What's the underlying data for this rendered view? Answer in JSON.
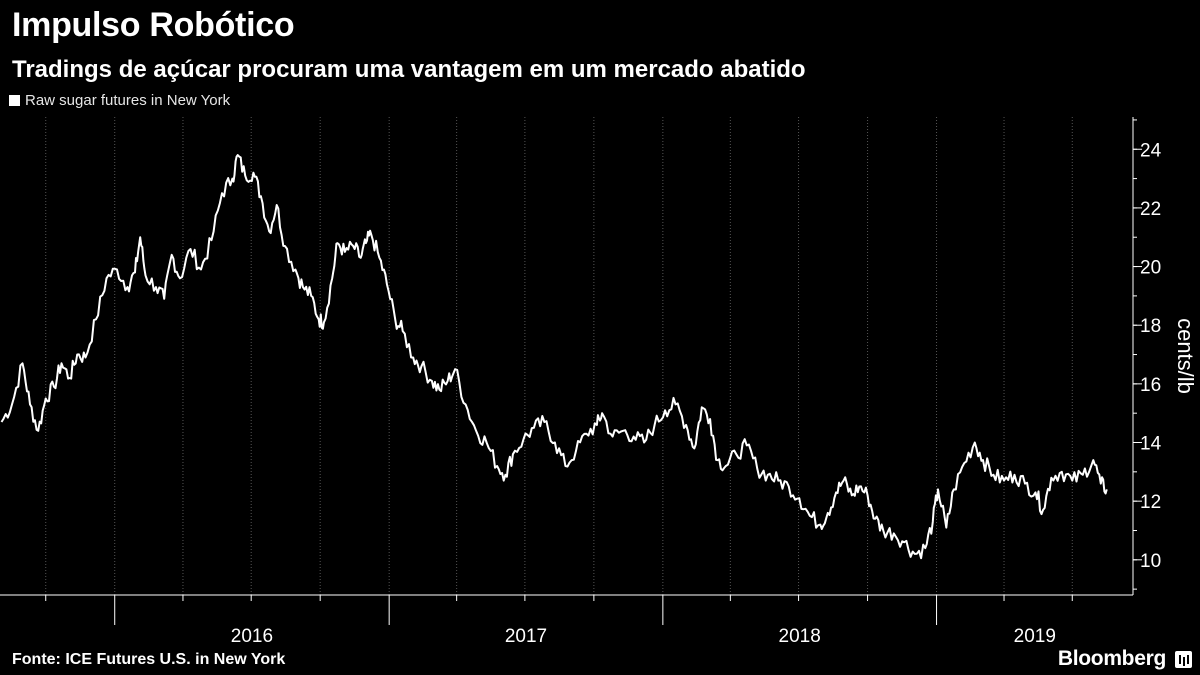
{
  "header": {
    "title": "Impulso Robótico",
    "subtitle": "Tradings de açúcar procuram uma vantagem em um mercado abatido"
  },
  "legend": {
    "label": "Raw sugar futures in New York",
    "color": "#ffffff"
  },
  "footer": {
    "source": "Fonte: ICE Futures U.S. in New York",
    "brand": "Bloomberg"
  },
  "colors": {
    "background": "#000000",
    "line": "#ffffff",
    "grid": "#555555",
    "text": "#ffffff"
  },
  "chart_data": {
    "type": "line",
    "series": [
      {
        "name": "Raw sugar futures in New York",
        "points": [
          [
            "2015-08-03",
            14.7
          ],
          [
            "2015-08-17",
            15.3
          ],
          [
            "2015-08-31",
            16.7
          ],
          [
            "2015-09-10",
            15.3
          ],
          [
            "2015-09-21",
            14.4
          ],
          [
            "2015-10-01",
            15.5
          ],
          [
            "2015-10-12",
            15.9
          ],
          [
            "2015-10-22",
            16.7
          ],
          [
            "2015-11-02",
            16.2
          ],
          [
            "2015-11-12",
            17.0
          ],
          [
            "2015-11-23",
            16.9
          ],
          [
            "2015-12-07",
            18.2
          ],
          [
            "2015-12-21",
            19.6
          ],
          [
            "2016-01-04",
            19.9
          ],
          [
            "2016-01-18",
            19.3
          ],
          [
            "2016-01-28",
            19.8
          ],
          [
            "2016-02-04",
            21.0
          ],
          [
            "2016-02-11",
            19.7
          ],
          [
            "2016-02-25",
            19.3
          ],
          [
            "2016-03-07",
            18.9
          ],
          [
            "2016-03-17",
            20.4
          ],
          [
            "2016-03-28",
            19.6
          ],
          [
            "2016-04-11",
            20.6
          ],
          [
            "2016-04-25",
            19.9
          ],
          [
            "2016-05-09",
            20.9
          ],
          [
            "2016-05-23",
            22.5
          ],
          [
            "2016-06-06",
            23.0
          ],
          [
            "2016-06-13",
            23.8
          ],
          [
            "2016-06-23",
            23.1
          ],
          [
            "2016-07-04",
            23.2
          ],
          [
            "2016-07-14",
            22.4
          ],
          [
            "2016-07-25",
            21.2
          ],
          [
            "2016-08-04",
            22.1
          ],
          [
            "2016-08-15",
            20.7
          ],
          [
            "2016-08-29",
            19.9
          ],
          [
            "2016-09-08",
            19.3
          ],
          [
            "2016-09-19",
            19.0
          ],
          [
            "2016-09-29",
            18.2
          ],
          [
            "2016-10-06",
            18.1
          ],
          [
            "2016-10-17",
            19.6
          ],
          [
            "2016-10-24",
            20.8
          ],
          [
            "2016-11-03",
            20.5
          ],
          [
            "2016-11-14",
            20.7
          ],
          [
            "2016-11-24",
            20.3
          ],
          [
            "2016-12-01",
            20.8
          ],
          [
            "2016-12-08",
            21.1
          ],
          [
            "2016-12-19",
            20.3
          ],
          [
            "2016-12-29",
            19.4
          ],
          [
            "2017-01-09",
            18.2
          ],
          [
            "2017-01-19",
            17.8
          ],
          [
            "2017-02-02",
            16.9
          ],
          [
            "2017-02-13",
            16.6
          ],
          [
            "2017-02-27",
            16.1
          ],
          [
            "2017-03-09",
            15.8
          ],
          [
            "2017-03-20",
            16.1
          ],
          [
            "2017-03-30",
            16.5
          ],
          [
            "2017-04-13",
            15.3
          ],
          [
            "2017-04-27",
            14.4
          ],
          [
            "2017-05-11",
            14.0
          ],
          [
            "2017-05-25",
            13.2
          ],
          [
            "2017-06-05",
            12.9
          ],
          [
            "2017-06-15",
            13.6
          ],
          [
            "2017-06-29",
            14.1
          ],
          [
            "2017-07-13",
            14.5
          ],
          [
            "2017-07-27",
            14.7
          ],
          [
            "2017-08-10",
            14.0
          ],
          [
            "2017-08-24",
            13.2
          ],
          [
            "2017-09-07",
            13.7
          ],
          [
            "2017-09-21",
            14.3
          ],
          [
            "2017-10-05",
            14.6
          ],
          [
            "2017-10-12",
            15.0
          ],
          [
            "2017-10-26",
            14.2
          ],
          [
            "2017-11-09",
            14.4
          ],
          [
            "2017-11-23",
            14.2
          ],
          [
            "2017-12-07",
            14.0
          ],
          [
            "2017-12-21",
            14.6
          ],
          [
            "2018-01-04",
            15.1
          ],
          [
            "2018-01-18",
            15.3
          ],
          [
            "2018-02-01",
            14.6
          ],
          [
            "2018-02-12",
            13.8
          ],
          [
            "2018-02-22",
            15.2
          ],
          [
            "2018-03-05",
            14.8
          ],
          [
            "2018-03-15",
            13.4
          ],
          [
            "2018-03-26",
            13.2
          ],
          [
            "2018-04-09",
            13.6
          ],
          [
            "2018-04-23",
            13.9
          ],
          [
            "2018-05-07",
            13.1
          ],
          [
            "2018-05-21",
            12.9
          ],
          [
            "2018-06-04",
            12.7
          ],
          [
            "2018-06-18",
            12.5
          ],
          [
            "2018-07-02",
            12.1
          ],
          [
            "2018-07-16",
            11.5
          ],
          [
            "2018-07-30",
            11.2
          ],
          [
            "2018-08-09",
            11.6
          ],
          [
            "2018-08-20",
            12.3
          ],
          [
            "2018-08-30",
            12.7
          ],
          [
            "2018-09-10",
            12.2
          ],
          [
            "2018-09-20",
            12.5
          ],
          [
            "2018-10-01",
            12.2
          ],
          [
            "2018-10-11",
            11.4
          ],
          [
            "2018-10-22",
            11.0
          ],
          [
            "2018-11-05",
            10.9
          ],
          [
            "2018-11-19",
            10.6
          ],
          [
            "2018-12-03",
            10.2
          ],
          [
            "2018-12-17",
            10.4
          ],
          [
            "2018-12-27",
            11.3
          ],
          [
            "2019-01-03",
            12.4
          ],
          [
            "2019-01-14",
            11.1
          ],
          [
            "2019-01-24",
            12.4
          ],
          [
            "2019-02-07",
            13.3
          ],
          [
            "2019-02-21",
            14.0
          ],
          [
            "2019-03-04",
            13.4
          ],
          [
            "2019-03-18",
            12.9
          ],
          [
            "2019-04-01",
            12.7
          ],
          [
            "2019-04-15",
            12.9
          ],
          [
            "2019-04-29",
            12.6
          ],
          [
            "2019-05-13",
            12.3
          ],
          [
            "2019-05-23",
            11.7
          ],
          [
            "2019-06-03",
            12.8
          ],
          [
            "2019-06-17",
            13.0
          ],
          [
            "2019-07-01",
            12.7
          ],
          [
            "2019-07-15",
            12.9
          ],
          [
            "2019-07-29",
            13.4
          ],
          [
            "2019-08-08",
            12.6
          ],
          [
            "2019-08-16",
            12.4
          ]
        ]
      }
    ],
    "x_range": [
      "2015-08-01",
      "2019-09-20"
    ],
    "y_range": [
      8.8,
      25.1
    ],
    "x_ticks": [
      "2016",
      "2017",
      "2018",
      "2019"
    ],
    "y_ticks": [
      10,
      12,
      14,
      16,
      18,
      20,
      22,
      24
    ],
    "ylabel": "cents/lb",
    "xlabel": "",
    "grid": "vertical dashed",
    "legend_position": "top-left"
  }
}
